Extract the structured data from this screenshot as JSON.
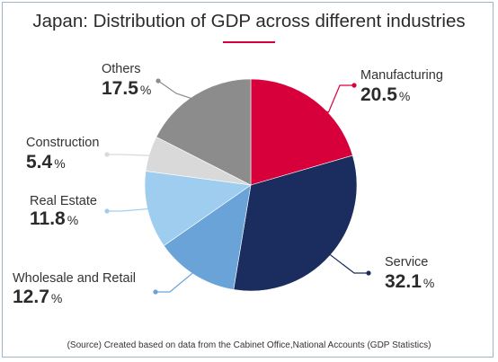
{
  "title": "Japan: Distribution of GDP across different industries",
  "source": "(Source) Created based on data from the Cabinet Office,National Accounts (GDP Statistics)",
  "colors": {
    "title_rule": "#d8003a",
    "manufacturing": "#d8003a",
    "service": "#1b2d5e",
    "wholesale_retail": "#6aa3d8",
    "real_estate": "#9fcdf0",
    "construction": "#d9d9d9",
    "others": "#8c8c8c"
  },
  "chart_data": {
    "type": "pie",
    "title": "Japan: Distribution of GDP across different industries",
    "unit": "%",
    "slices": [
      {
        "label": "Manufacturing",
        "value": 20.5,
        "color": "#d8003a"
      },
      {
        "label": "Service",
        "value": 32.1,
        "color": "#1b2d5e"
      },
      {
        "label": "Wholesale and Retail",
        "value": 12.7,
        "color": "#6aa3d8"
      },
      {
        "label": "Real Estate",
        "value": 11.8,
        "color": "#9fcdf0"
      },
      {
        "label": "Construction",
        "value": 5.4,
        "color": "#d9d9d9"
      },
      {
        "label": "Others",
        "value": 17.5,
        "color": "#8c8c8c"
      }
    ]
  }
}
